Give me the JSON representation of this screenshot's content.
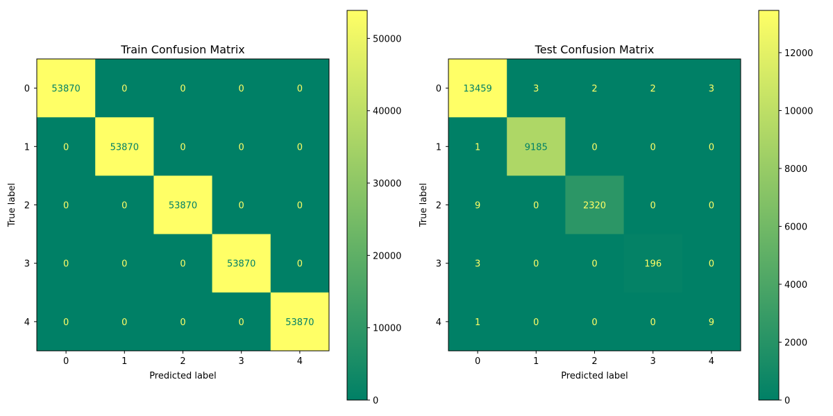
{
  "chart_data": [
    {
      "type": "heatmap",
      "title": "Train Confusion Matrix",
      "xlabel": "Predicted label",
      "ylabel": "True label",
      "x_categories": [
        "0",
        "1",
        "2",
        "3",
        "4"
      ],
      "y_categories": [
        "0",
        "1",
        "2",
        "3",
        "4"
      ],
      "matrix": [
        [
          53870,
          0,
          0,
          0,
          0
        ],
        [
          0,
          53870,
          0,
          0,
          0
        ],
        [
          0,
          0,
          53870,
          0,
          0
        ],
        [
          0,
          0,
          0,
          53870,
          0
        ],
        [
          0,
          0,
          0,
          0,
          53870
        ]
      ],
      "colormap": "summer",
      "colorbar": {
        "vmin": 0,
        "vmax": 53870,
        "ticks": [
          0,
          10000,
          20000,
          30000,
          40000,
          50000
        ],
        "tick_labels": [
          "0",
          "10000",
          "20000",
          "30000",
          "40000",
          "50000"
        ]
      }
    },
    {
      "type": "heatmap",
      "title": "Test Confusion Matrix",
      "xlabel": "Predicted label",
      "ylabel": "True label",
      "x_categories": [
        "0",
        "1",
        "2",
        "3",
        "4"
      ],
      "y_categories": [
        "0",
        "1",
        "2",
        "3",
        "4"
      ],
      "matrix": [
        [
          13459,
          3,
          2,
          2,
          3
        ],
        [
          1,
          9185,
          0,
          0,
          0
        ],
        [
          9,
          0,
          2320,
          0,
          0
        ],
        [
          3,
          0,
          0,
          196,
          0
        ],
        [
          1,
          0,
          0,
          0,
          9
        ]
      ],
      "colormap": "summer",
      "colorbar": {
        "vmin": 0,
        "vmax": 13459,
        "ticks": [
          0,
          2000,
          4000,
          6000,
          8000,
          10000,
          12000
        ],
        "tick_labels": [
          "0",
          "2000",
          "4000",
          "6000",
          "8000",
          "10000",
          "12000"
        ]
      }
    }
  ],
  "colors": {
    "colormap_low": "#008066",
    "colormap_high": "#ffff66",
    "dark_text": "#008066",
    "light_text": "#ffff66"
  }
}
